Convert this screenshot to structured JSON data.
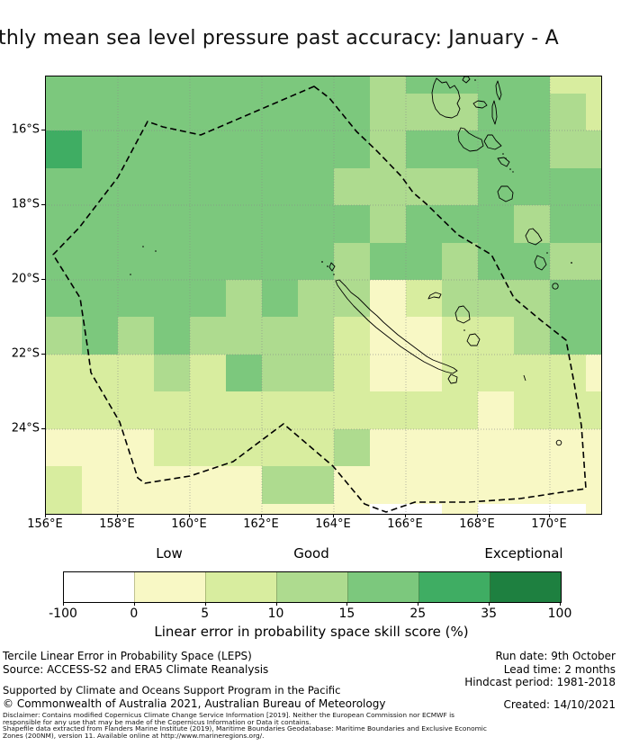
{
  "title": "thly mean sea level pressure past accuracy: January - A",
  "axes": {
    "x_ticks": [
      {
        "label": "156°E",
        "lon": 156
      },
      {
        "label": "158°E",
        "lon": 158
      },
      {
        "label": "160°E",
        "lon": 160
      },
      {
        "label": "162°E",
        "lon": 162
      },
      {
        "label": "164°E",
        "lon": 164
      },
      {
        "label": "166°E",
        "lon": 166
      },
      {
        "label": "168°E",
        "lon": 168
      },
      {
        "label": "170°E",
        "lon": 170
      }
    ],
    "y_ticks": [
      {
        "label": "16°S",
        "lat": 16
      },
      {
        "label": "18°S",
        "lat": 18
      },
      {
        "label": "20°S",
        "lat": 20
      },
      {
        "label": "22°S",
        "lat": 22
      },
      {
        "label": "24°S",
        "lat": 24
      }
    ]
  },
  "colorbar": {
    "categories": [
      {
        "label": "Low",
        "seg_center": 1.5
      },
      {
        "label": "Good",
        "seg_center": 3.5
      },
      {
        "label": "Exceptional",
        "seg_center": 6.5
      }
    ],
    "tick_labels": [
      "-100",
      "0",
      "5",
      "10",
      "15",
      "25",
      "35",
      "100"
    ],
    "boundaries": [
      -100,
      0,
      5,
      10,
      15,
      25,
      35,
      100
    ],
    "colors": [
      "#ffffff",
      "#f8f8c5",
      "#d8ed9f",
      "#aedb8f",
      "#7cc87d",
      "#3fad63",
      "#1e8040"
    ],
    "xlabel": "Linear error in probability space skill score (%)"
  },
  "footer": {
    "left": [
      "Tercile Linear Error in Probability Space (LEPS)",
      "Source: ACCESS-S2 and ERA5 Climate Reanalysis",
      "Supported by Climate and Oceans Support Program in the Pacific",
      "© Commonwealth of Australia 2021, Australian Bureau of Meteorology"
    ],
    "right": [
      "Run date: 9th October",
      "Lead time: 2 months",
      "Hindcast period: 1981-2018",
      "Created: 14/10/2021"
    ],
    "disclaimer": [
      "Disclaimer: Contains modified Copernicus Climate Change Service Information [2019]. Neither the European Commission nor ECMWF is",
      "responsible for any use that may be made of the Copernicus Information or Data it contains.",
      "Shapefile data extracted from Flanders Marine Institute (2019), Maritime Boundaries Geodatabase: Maritime Boundaries and Exclusive Economic",
      "Zones (200NM), version 11. Available online at http://www.marineregions.org/."
    ]
  },
  "chart_data": {
    "type": "heatmap",
    "title": "Monthly mean sea level pressure past accuracy: January",
    "xlabel_units": "degrees east",
    "ylabel_units": "degrees south",
    "x_range": [
      156,
      171.4
    ],
    "y_range": [
      -26.27,
      -14.55
    ],
    "legend_position": "bottom",
    "grid_on": true,
    "bins": [
      {
        "range": "-100–0",
        "label": "",
        "color": "#ffffff"
      },
      {
        "range": "0–5",
        "label": "Low",
        "color": "#f8f8c5"
      },
      {
        "range": "5–10",
        "label": "",
        "color": "#d8ed9f"
      },
      {
        "range": "10–15",
        "label": "Good",
        "color": "#aedb8f"
      },
      {
        "range": "15–25",
        "label": "",
        "color": "#7cc87d"
      },
      {
        "range": "25–35",
        "label": "",
        "color": "#3fad63"
      },
      {
        "range": "35–100",
        "label": "Exceptional",
        "color": "#1e8040"
      }
    ],
    "grid": {
      "lon_start": 156,
      "lon_step": 1,
      "n_cols": 16,
      "lat_start": -14.55,
      "lat_step": -1,
      "n_rows": 13,
      "note": "values are colorbar bin indices 0-6 of LEPS skill score per ~1 degree cell",
      "rows": [
        [
          4,
          4,
          4,
          4,
          4,
          4,
          4,
          4,
          4,
          3,
          4,
          4,
          4,
          4,
          2,
          2
        ],
        [
          4,
          4,
          4,
          4,
          4,
          4,
          4,
          4,
          4,
          3,
          3,
          3,
          4,
          4,
          3,
          2
        ],
        [
          5,
          4,
          4,
          4,
          4,
          4,
          4,
          4,
          4,
          3,
          4,
          4,
          4,
          4,
          3,
          3
        ],
        [
          4,
          4,
          4,
          4,
          4,
          4,
          4,
          4,
          3,
          3,
          3,
          3,
          4,
          4,
          4,
          4
        ],
        [
          4,
          4,
          4,
          4,
          4,
          4,
          4,
          4,
          4,
          3,
          4,
          4,
          4,
          3,
          4,
          4
        ],
        [
          4,
          4,
          4,
          4,
          4,
          4,
          4,
          4,
          3,
          4,
          4,
          3,
          4,
          4,
          3,
          3
        ],
        [
          4,
          4,
          4,
          4,
          4,
          3,
          4,
          3,
          3,
          1,
          2,
          3,
          3,
          3,
          4,
          4
        ],
        [
          3,
          4,
          3,
          4,
          3,
          3,
          3,
          3,
          2,
          1,
          1,
          2,
          2,
          3,
          4,
          4
        ],
        [
          2,
          2,
          2,
          3,
          2,
          4,
          3,
          3,
          2,
          1,
          1,
          2,
          2,
          2,
          2,
          1
        ],
        [
          2,
          2,
          2,
          2,
          2,
          2,
          2,
          2,
          2,
          2,
          2,
          2,
          1,
          2,
          2,
          2
        ],
        [
          1,
          1,
          1,
          2,
          2,
          2,
          2,
          2,
          3,
          1,
          1,
          1,
          1,
          1,
          1,
          1
        ],
        [
          2,
          1,
          1,
          1,
          1,
          1,
          3,
          3,
          1,
          1,
          1,
          1,
          1,
          1,
          1,
          1
        ],
        [
          2,
          1,
          1,
          1,
          1,
          1,
          1,
          1,
          1,
          0,
          0,
          1,
          0,
          0,
          0,
          1
        ]
      ]
    }
  }
}
